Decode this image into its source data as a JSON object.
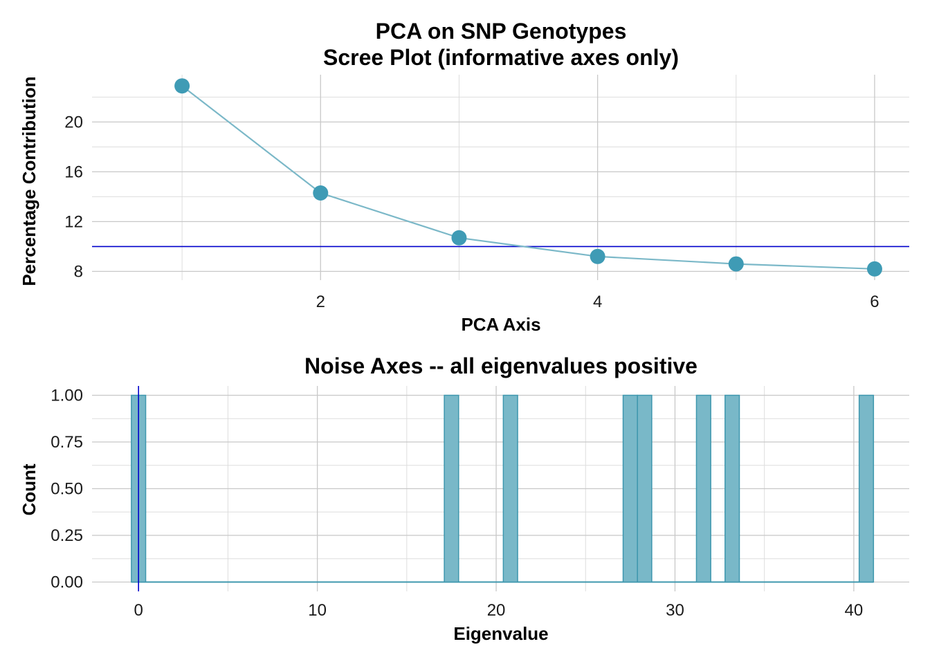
{
  "chart_data": [
    {
      "type": "line",
      "title": "PCA on SNP Genotypes",
      "subtitle": "Scree Plot (informative axes only)",
      "xlabel": "PCA Axis",
      "ylabel": "Percentage Contribution",
      "x": [
        1,
        2,
        3,
        4,
        5,
        6
      ],
      "values": [
        22.9,
        14.3,
        10.7,
        9.2,
        8.6,
        8.2
      ],
      "x_ticks": [
        2,
        4,
        6
      ],
      "y_ticks": [
        8,
        12,
        16,
        20
      ],
      "xlim": [
        0.35,
        6.25
      ],
      "ylim": [
        7.3,
        23.8
      ],
      "reference_line": 10,
      "grid": true,
      "colors": {
        "points": "#3f9bb5",
        "line": "#7bb8c8",
        "reference": "#0000cc"
      }
    },
    {
      "type": "bar",
      "title": "Noise Axes -- all eigenvalues positive",
      "xlabel": "Eigenvalue",
      "ylabel": "Count",
      "bins": [
        {
          "from": -0.4,
          "to": 0.4,
          "count": 1
        },
        {
          "from": 17.1,
          "to": 17.9,
          "count": 1
        },
        {
          "from": 20.4,
          "to": 21.2,
          "count": 1
        },
        {
          "from": 27.1,
          "to": 27.9,
          "count": 1
        },
        {
          "from": 27.9,
          "to": 28.7,
          "count": 1
        },
        {
          "from": 31.2,
          "to": 32.0,
          "count": 1
        },
        {
          "from": 32.8,
          "to": 33.6,
          "count": 1
        },
        {
          "from": 40.3,
          "to": 41.1,
          "count": 1
        }
      ],
      "x_ticks": [
        0,
        10,
        20,
        30,
        40
      ],
      "y_ticks": [
        "0.00",
        "0.25",
        "0.50",
        "0.75",
        "1.00"
      ],
      "xlim": [
        -2.6,
        43.1
      ],
      "ylim": [
        -0.05,
        1.05
      ],
      "reference_line": 0,
      "grid": true,
      "colors": {
        "bar_fill": "#79b8c8",
        "bar_stroke": "#3e97ae",
        "reference": "#0000cc"
      }
    }
  ]
}
